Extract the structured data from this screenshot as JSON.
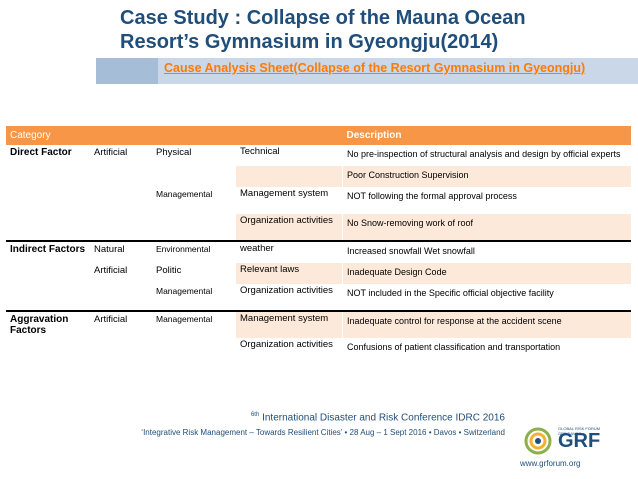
{
  "title_line1": "Case Study : Collapse of the Mauna Ocean",
  "title_line2": "Resort’s Gymnasium in Gyeongju(2014)",
  "subtitle": "Cause Analysis Sheet(Collapse of the Resort Gymnasium in Gyeongju)",
  "table": {
    "header_category": "Category",
    "header_description": "Description",
    "rows": [
      {
        "c1": "Direct Factor",
        "c2": "Artificial",
        "c3": "Physical",
        "c4": "Technical",
        "d": "No pre-inspection of structural analysis and design by official experts"
      },
      {
        "c1": "",
        "c2": "",
        "c3": "",
        "c4": "",
        "d": "Poor Construction Supervision"
      },
      {
        "c1": "",
        "c2": "",
        "c3": "Managemental",
        "c4": "Management system",
        "d": "NOT following the formal approval process"
      },
      {
        "c1": "",
        "c2": "",
        "c3": "",
        "c4": "Organization activities",
        "d": "No Snow-removing work of roof"
      },
      {
        "c1": "Indirect Factors",
        "c2": "Natural",
        "c3": "Environmental",
        "c4": "weather",
        "d": "Increased snowfall  Wet snowfall"
      },
      {
        "c1": "",
        "c2": "Artificial",
        "c3": "Politic",
        "c4": "Relevant laws",
        "d": "Inadequate Design Code"
      },
      {
        "c1": "",
        "c2": "",
        "c3": "Managemental",
        "c4": "Organization activities",
        "d": "NOT included in the Specific official objective facility"
      },
      {
        "c1": "Aggravation Factors",
        "c2": "Artificial",
        "c3": "Managemental",
        "c4": "Management system",
        "d": "Inadequate control for response at the accident scene"
      },
      {
        "c1": "",
        "c2": "",
        "c3": "",
        "c4": "Organization activities",
        "d": "Confusions of patient classification and transportation"
      }
    ]
  },
  "footer": {
    "sup": "6th",
    "conf": "International Disaster and Risk Conference IDRC 2016",
    "tagline": "‘Integrative Risk Management – Towards Resilient Cities’ • 28 Aug – 1 Sept 2016 • Davos • Switzerland",
    "logo_name": "GRF",
    "logo_small": "GLOBAL RISK FORUM GRF DAVOS",
    "url": "www.grforum.org"
  },
  "colors": {
    "header_bg": "#f79646",
    "title": "#1f4e7a",
    "subtitle": "#ff7a00",
    "band": "#c9d7e8"
  }
}
